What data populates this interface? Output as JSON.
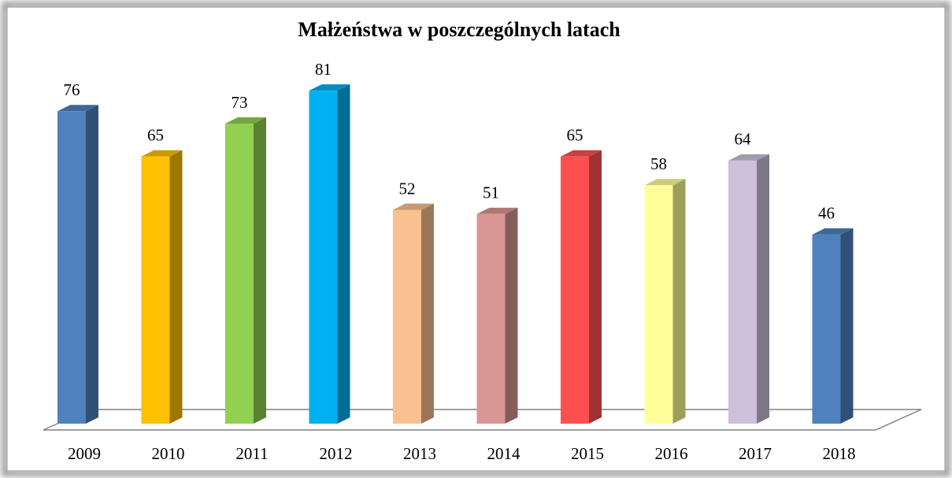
{
  "chart_data": {
    "type": "bar3d",
    "title": "Małżeństwa w poszczególnych latach",
    "categories": [
      "2009",
      "2010",
      "2011",
      "2012",
      "2013",
      "2014",
      "2015",
      "2016",
      "2017",
      "2018"
    ],
    "values": [
      76,
      65,
      73,
      81,
      52,
      51,
      65,
      58,
      64,
      46
    ],
    "colors": [
      "#4f81bd",
      "#ffc000",
      "#92d050",
      "#00b0f0",
      "#fac090",
      "#d99694",
      "#ff5050",
      "#ffff99",
      "#ccc0da",
      "#4f81bd"
    ],
    "ylim": [
      0,
      100
    ]
  }
}
